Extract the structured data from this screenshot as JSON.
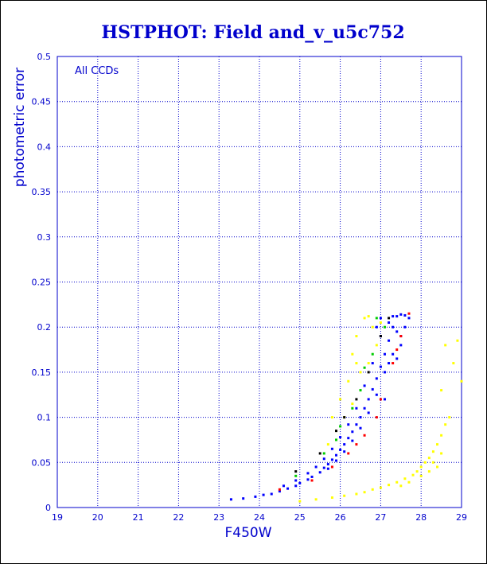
{
  "chart_data": {
    "type": "scatter",
    "title": "HSTPHOT: Field and_v_u5c752",
    "xlabel": "F450W",
    "ylabel": "photometric error",
    "annotation": "All CCDs",
    "xlim": [
      19,
      29
    ],
    "ylim": [
      0,
      0.5
    ],
    "x_ticks": [
      "19",
      "20",
      "21",
      "22",
      "23",
      "24",
      "25",
      "26",
      "27",
      "28",
      "29"
    ],
    "y_ticks": [
      "0",
      "0.05",
      "0.1",
      "0.15",
      "0.2",
      "0.25",
      "0.3",
      "0.35",
      "0.4",
      "0.45",
      "0.5"
    ],
    "grid": true,
    "series": [
      {
        "color": "#0000ff",
        "points": [
          [
            23.3,
            0.009
          ],
          [
            23.6,
            0.01
          ],
          [
            23.9,
            0.012
          ],
          [
            24.1,
            0.014
          ],
          [
            24.3,
            0.015
          ],
          [
            24.5,
            0.018
          ],
          [
            24.7,
            0.021
          ],
          [
            24.9,
            0.024
          ],
          [
            25.0,
            0.027
          ],
          [
            25.2,
            0.031
          ],
          [
            25.3,
            0.034
          ],
          [
            25.5,
            0.039
          ],
          [
            25.6,
            0.044
          ],
          [
            25.7,
            0.048
          ],
          [
            25.8,
            0.053
          ],
          [
            25.9,
            0.058
          ],
          [
            26.0,
            0.064
          ],
          [
            26.1,
            0.07
          ],
          [
            26.2,
            0.077
          ],
          [
            26.3,
            0.084
          ],
          [
            26.4,
            0.092
          ],
          [
            26.5,
            0.1
          ],
          [
            26.6,
            0.11
          ],
          [
            26.7,
            0.12
          ],
          [
            26.8,
            0.131
          ],
          [
            26.9,
            0.143
          ],
          [
            27.0,
            0.156
          ],
          [
            27.1,
            0.17
          ],
          [
            27.2,
            0.185
          ],
          [
            27.3,
            0.2
          ],
          [
            27.4,
            0.212
          ],
          [
            27.5,
            0.214
          ],
          [
            27.6,
            0.213
          ],
          [
            27.2,
            0.205
          ],
          [
            27.0,
            0.19
          ],
          [
            26.8,
            0.16
          ],
          [
            26.6,
            0.135
          ],
          [
            26.4,
            0.11
          ],
          [
            26.2,
            0.092
          ],
          [
            26.0,
            0.078
          ],
          [
            25.8,
            0.065
          ],
          [
            25.6,
            0.054
          ],
          [
            25.4,
            0.045
          ],
          [
            25.2,
            0.038
          ],
          [
            24.9,
            0.03
          ],
          [
            24.6,
            0.024
          ],
          [
            27.4,
            0.195
          ],
          [
            27.5,
            0.18
          ],
          [
            27.3,
            0.17
          ],
          [
            27.1,
            0.15
          ],
          [
            26.9,
            0.125
          ],
          [
            26.7,
            0.105
          ],
          [
            26.5,
            0.088
          ],
          [
            26.3,
            0.074
          ],
          [
            26.1,
            0.062
          ],
          [
            25.9,
            0.052
          ],
          [
            25.7,
            0.043
          ],
          [
            27.6,
            0.2
          ],
          [
            27.7,
            0.21
          ],
          [
            27.3,
            0.212
          ],
          [
            27.0,
            0.21
          ],
          [
            26.9,
            0.2
          ],
          [
            27.2,
            0.16
          ],
          [
            27.4,
            0.165
          ],
          [
            27.5,
            0.19
          ],
          [
            27.1,
            0.12
          ]
        ]
      },
      {
        "color": "#ffff00",
        "points": [
          [
            25.0,
            0.007
          ],
          [
            25.4,
            0.009
          ],
          [
            25.8,
            0.011
          ],
          [
            26.1,
            0.013
          ],
          [
            26.4,
            0.015
          ],
          [
            26.6,
            0.017
          ],
          [
            26.8,
            0.02
          ],
          [
            27.0,
            0.022
          ],
          [
            27.2,
            0.025
          ],
          [
            27.4,
            0.028
          ],
          [
            27.6,
            0.032
          ],
          [
            27.8,
            0.036
          ],
          [
            27.9,
            0.04
          ],
          [
            28.0,
            0.045
          ],
          [
            28.1,
            0.05
          ],
          [
            28.2,
            0.055
          ],
          [
            28.3,
            0.062
          ],
          [
            28.4,
            0.07
          ],
          [
            28.5,
            0.08
          ],
          [
            28.6,
            0.092
          ],
          [
            28.4,
            0.045
          ],
          [
            28.2,
            0.04
          ],
          [
            28.0,
            0.035
          ],
          [
            27.7,
            0.028
          ],
          [
            27.5,
            0.024
          ],
          [
            28.3,
            0.05
          ],
          [
            28.5,
            0.06
          ],
          [
            28.7,
            0.1
          ],
          [
            29.0,
            0.14
          ],
          [
            28.8,
            0.16
          ],
          [
            28.6,
            0.18
          ],
          [
            28.9,
            0.185
          ],
          [
            28.5,
            0.13
          ],
          [
            26.4,
            0.19
          ],
          [
            26.6,
            0.21
          ],
          [
            26.3,
            0.17
          ],
          [
            26.5,
            0.15
          ],
          [
            26.2,
            0.14
          ],
          [
            26.8,
            0.2
          ],
          [
            26.9,
            0.18
          ],
          [
            26.0,
            0.12
          ],
          [
            25.8,
            0.1
          ],
          [
            26.1,
            0.1
          ],
          [
            25.9,
            0.085
          ],
          [
            26.7,
            0.16
          ],
          [
            27.0,
            0.205
          ],
          [
            26.7,
            0.212
          ],
          [
            26.4,
            0.16
          ],
          [
            25.7,
            0.07
          ],
          [
            26.3,
            0.115
          ]
        ]
      },
      {
        "color": "#00cc00",
        "points": [
          [
            26.0,
            0.09
          ],
          [
            26.5,
            0.13
          ],
          [
            26.8,
            0.17
          ],
          [
            26.3,
            0.11
          ],
          [
            25.6,
            0.06
          ],
          [
            24.9,
            0.035
          ],
          [
            26.9,
            0.21
          ],
          [
            27.1,
            0.2
          ],
          [
            25.9,
            0.075
          ],
          [
            26.6,
            0.155
          ]
        ]
      },
      {
        "color": "#ff0000",
        "points": [
          [
            26.2,
            0.06
          ],
          [
            26.6,
            0.08
          ],
          [
            27.0,
            0.12
          ],
          [
            27.3,
            0.16
          ],
          [
            27.5,
            0.19
          ],
          [
            27.7,
            0.215
          ],
          [
            25.8,
            0.045
          ],
          [
            25.3,
            0.03
          ],
          [
            24.5,
            0.02
          ],
          [
            26.9,
            0.1
          ],
          [
            27.4,
            0.175
          ],
          [
            26.4,
            0.07
          ]
        ]
      },
      {
        "color": "#000000",
        "points": [
          [
            25.9,
            0.085
          ],
          [
            26.4,
            0.12
          ],
          [
            26.7,
            0.15
          ],
          [
            27.0,
            0.19
          ],
          [
            25.5,
            0.06
          ],
          [
            24.9,
            0.04
          ],
          [
            27.2,
            0.21
          ],
          [
            26.1,
            0.1
          ]
        ]
      }
    ]
  }
}
